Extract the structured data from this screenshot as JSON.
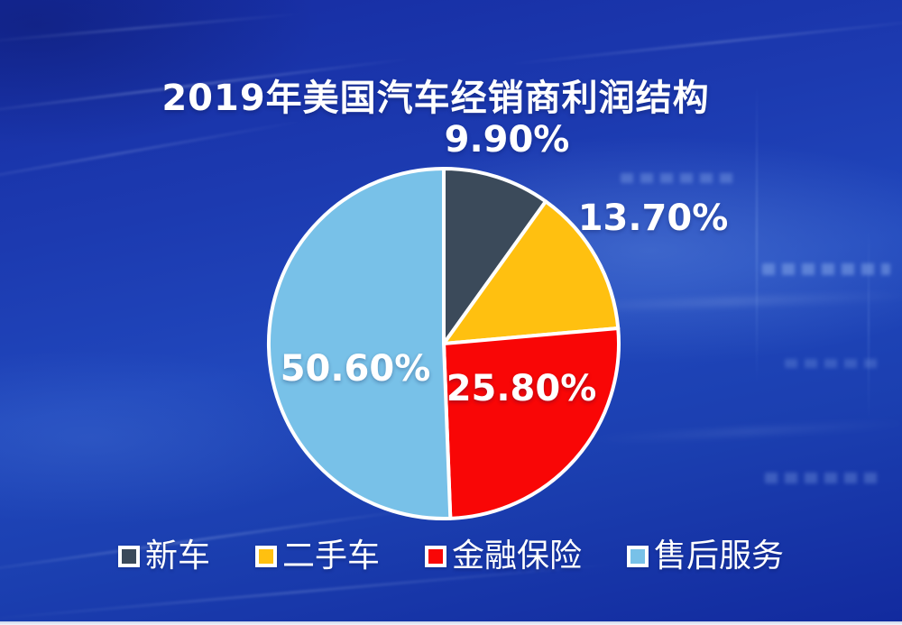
{
  "chart_data": {
    "type": "pie",
    "title": "2019年美国汽车经销商利润结构",
    "start_angle_deg": 0,
    "direction": "clockwise",
    "legend_position": "bottom",
    "slice_border_color": "#FFFFFF",
    "slices": [
      {
        "name": "新车",
        "value": 9.9,
        "label": "9.90%",
        "color": "#3B4A5A"
      },
      {
        "name": "二手车",
        "value": 13.7,
        "label": "13.70%",
        "color": "#FFC010"
      },
      {
        "name": "金融保险",
        "value": 25.8,
        "label": "25.80%",
        "color": "#F90606"
      },
      {
        "name": "售后服务",
        "value": 50.6,
        "label": "50.60%",
        "color": "#78C1E8"
      }
    ],
    "background_base_color": "#1C3AB0",
    "label_color": "#FFFFFF"
  }
}
